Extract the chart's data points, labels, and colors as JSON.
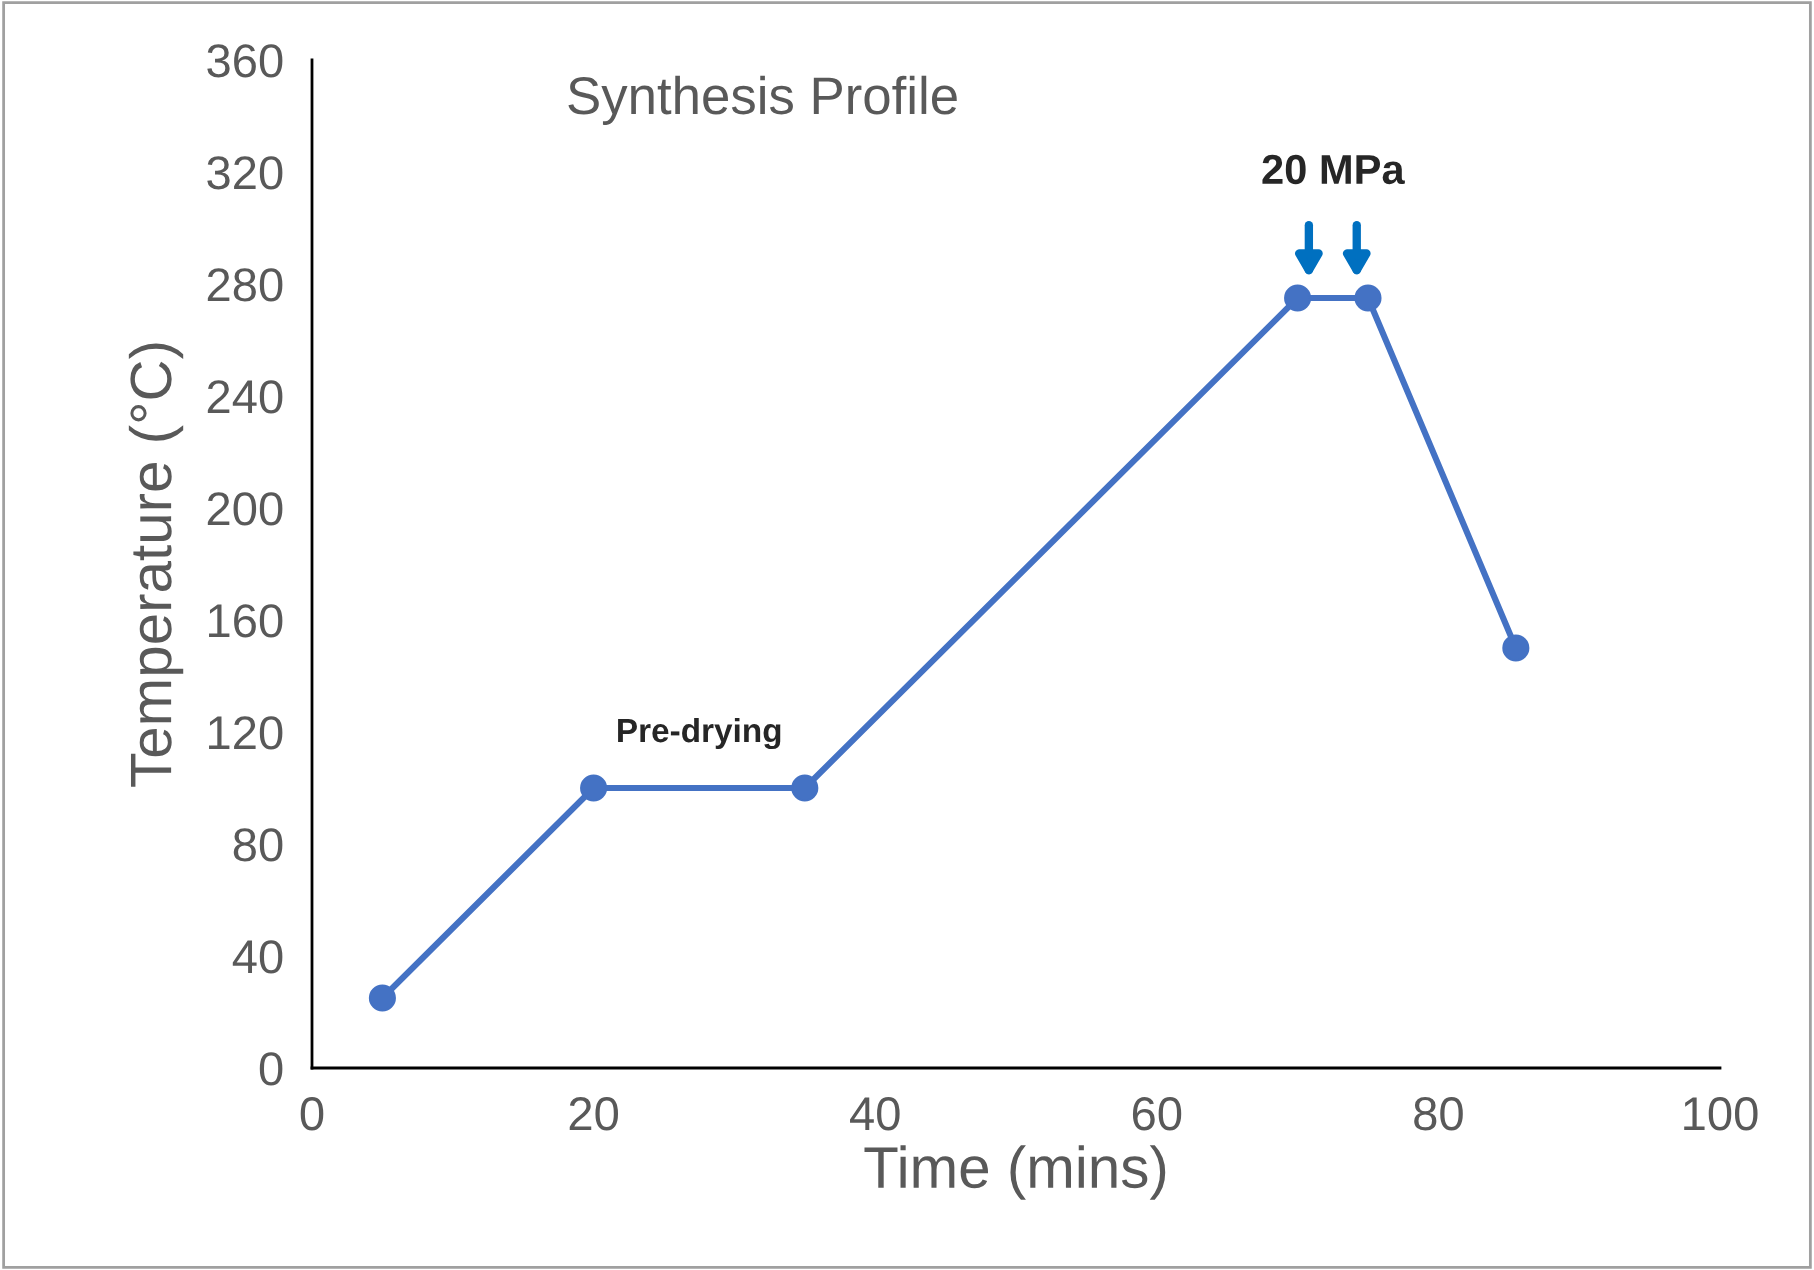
{
  "chart_data": {
    "type": "line",
    "title": "Synthesis Profile",
    "xlabel": "Time (mins)",
    "ylabel": "Temperature (°C)",
    "x": [
      5,
      20,
      35,
      70,
      75,
      85.5
    ],
    "series": [
      {
        "color": "#4472c4",
        "values": [
          25,
          100,
          100,
          275,
          275,
          150
        ]
      }
    ],
    "xlim": [
      0,
      100
    ],
    "xticks": [
      0,
      20,
      40,
      60,
      80,
      100
    ],
    "ylim": [
      0,
      360
    ],
    "yticks": [
      0,
      40,
      80,
      120,
      160,
      200,
      240,
      280,
      320,
      360
    ],
    "marker": "circle",
    "line_style": "solid",
    "grid": false,
    "legend": false,
    "annotations": [
      {
        "text": "Pre-drying",
        "x": 27.5,
        "y": 100
      },
      {
        "text": "20 MPa",
        "x": 72.5,
        "y": 275
      }
    ]
  }
}
